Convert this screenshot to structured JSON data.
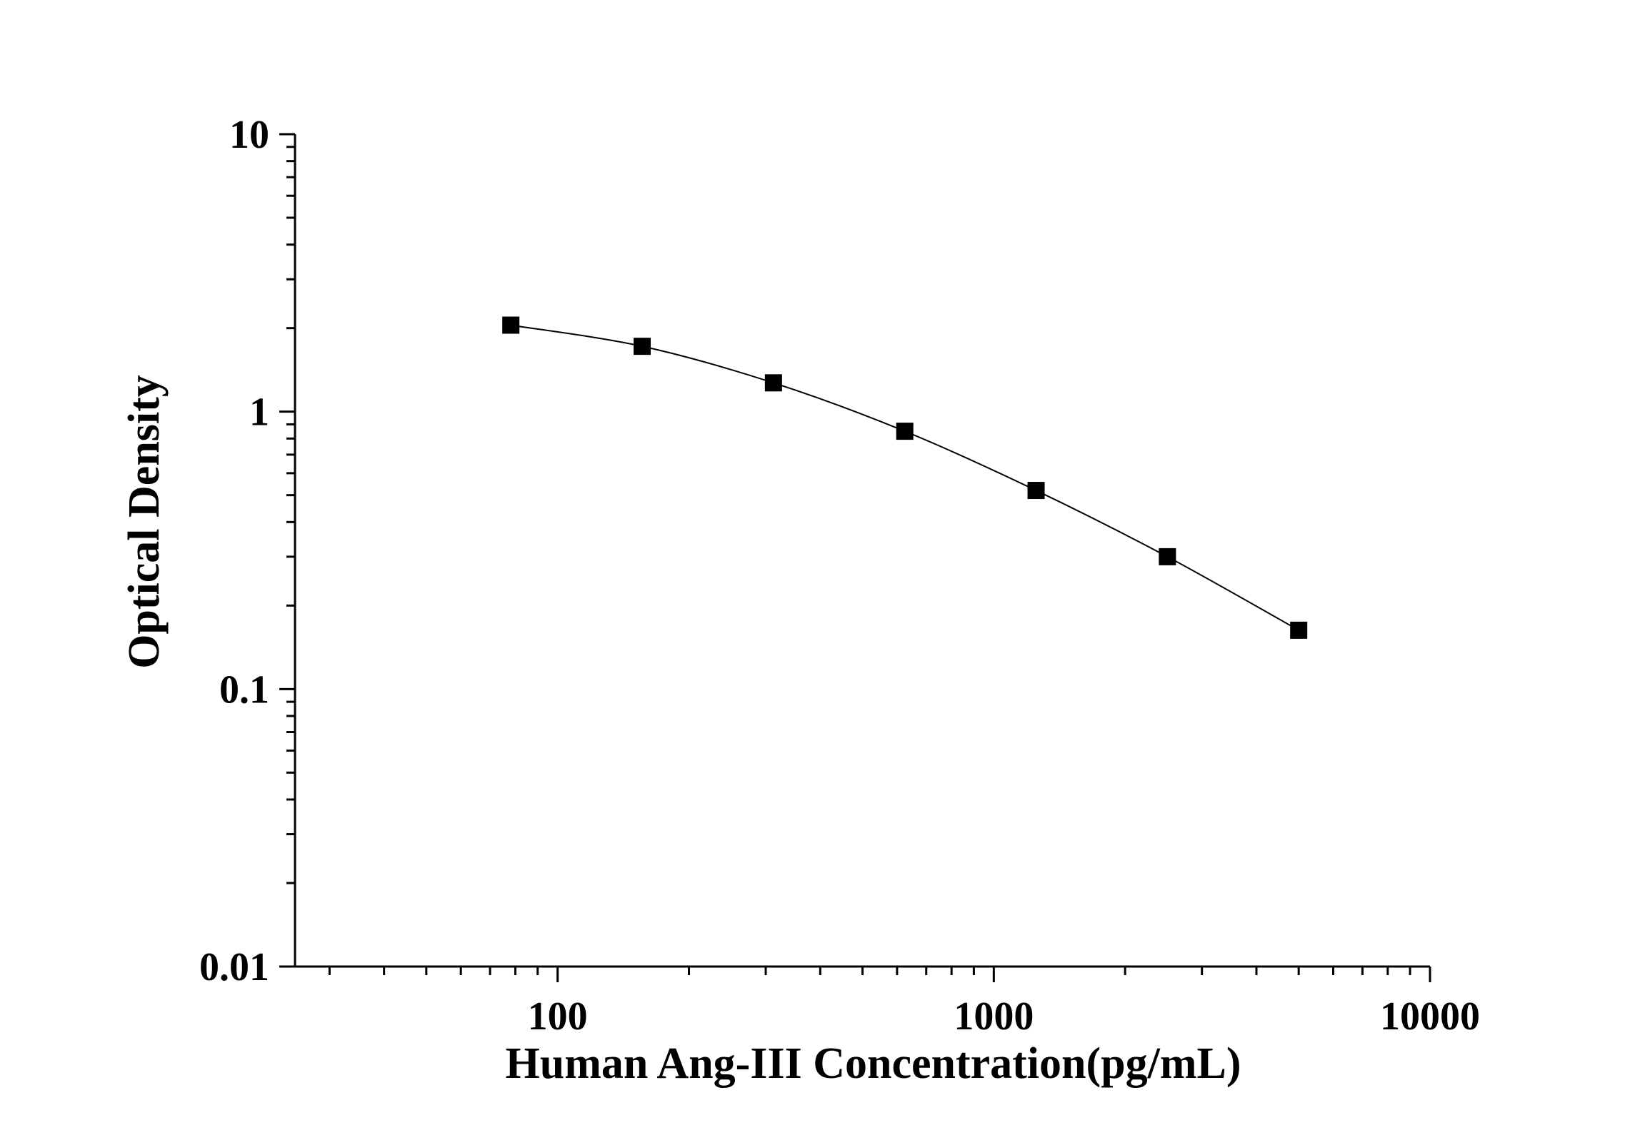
{
  "chart_data": {
    "type": "scatter",
    "title": "",
    "xlabel": "Human Ang-III Concentration(pg/mL)",
    "ylabel": "Optical Density",
    "x_scale": "log",
    "y_scale": "log",
    "xlim": [
      25,
      10000
    ],
    "ylim": [
      0.01,
      10
    ],
    "x_ticks": [
      100,
      1000,
      10000
    ],
    "x_tick_labels": [
      "100",
      "1000",
      "10000"
    ],
    "y_ticks": [
      0.01,
      0.1,
      1,
      10
    ],
    "y_tick_labels": [
      "0.01",
      "0.1",
      "1",
      "10"
    ],
    "grid": false,
    "legend": "none",
    "marker": "square",
    "line": "smooth-fit",
    "color": "#000000",
    "x": [
      78.125,
      156.25,
      312.5,
      625,
      1250,
      2500,
      5000
    ],
    "y": [
      2.05,
      1.72,
      1.27,
      0.85,
      0.52,
      0.3,
      0.163
    ]
  }
}
